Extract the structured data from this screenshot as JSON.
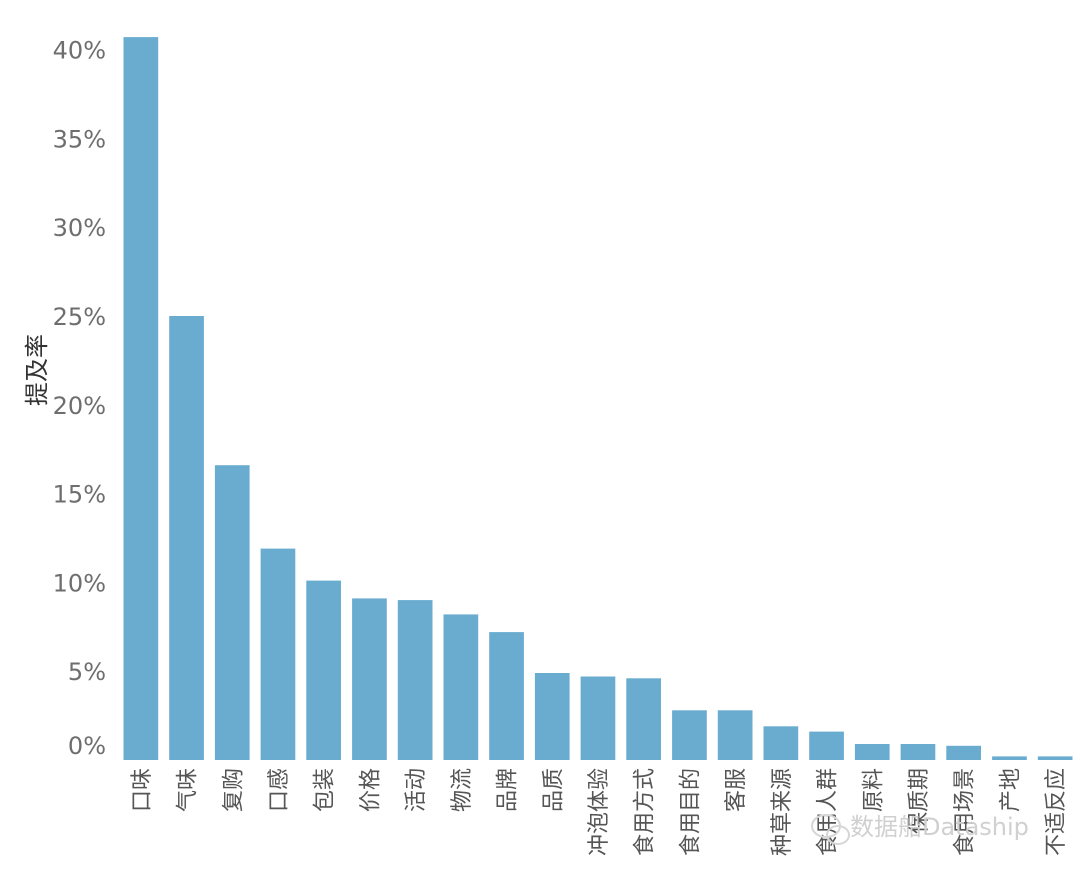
{
  "chart_data": {
    "type": "bar",
    "ylabel": "提及率",
    "ylim": [
      0,
      42
    ],
    "yticks": [
      0,
      5,
      10,
      15,
      20,
      25,
      30,
      35,
      40
    ],
    "ytick_labels": [
      "0%",
      "5%",
      "10%",
      "15%",
      "20%",
      "25%",
      "30%",
      "35%",
      "40%"
    ],
    "categories": [
      "口味",
      "气味",
      "复购",
      "口感",
      "包装",
      "价格",
      "活动",
      "物流",
      "品牌",
      "品质",
      "冲泡体验",
      "食用方式",
      "食用目的",
      "客服",
      "种草来源",
      "食用人群",
      "原料",
      "保质期",
      "食用场景",
      "产地",
      "不适反应"
    ],
    "values": [
      40.7,
      25.0,
      16.6,
      11.9,
      10.1,
      9.1,
      9.0,
      8.2,
      7.2,
      4.9,
      4.7,
      4.6,
      2.8,
      2.8,
      1.9,
      1.6,
      0.9,
      0.9,
      0.8,
      0.2,
      0.2
    ],
    "bar_color": "#6aaccf",
    "grid": false,
    "legend": "none"
  },
  "watermark": {
    "text": "数据船Dataship",
    "icon": "wechat-icon"
  }
}
